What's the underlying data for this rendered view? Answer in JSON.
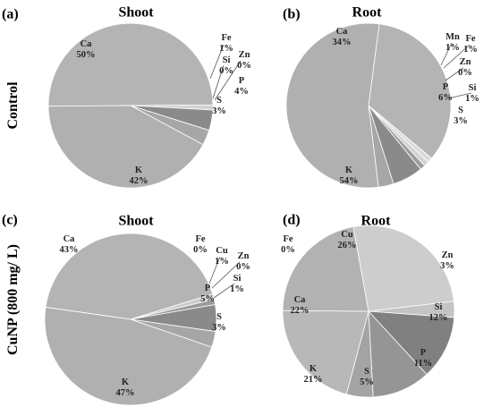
{
  "figure": {
    "row_labels": [
      "Control",
      "CuNP (800 mg/ L)"
    ]
  },
  "colors": {
    "Ca": "#b4b4b4",
    "K": "#b0b0b0",
    "S": "#a6a6a6",
    "P": "#8a8a8a",
    "Si": "#9c9c9c",
    "Zn": "#c4c4c4",
    "Fe": "#d2d2d2",
    "Mn": "#dadada",
    "Cu": "#cdcdcd",
    "Si_root_cunp": "#808080",
    "P_root_cunp": "#959595",
    "S_root_cunp": "#a4a4a4",
    "K_root_cunp": "#b8b8b8",
    "Ca_root_cunp": "#b2b2b2"
  },
  "chart_data": [
    {
      "panel": "(a)",
      "title": "Shoot",
      "type": "pie",
      "slices": [
        {
          "label": "Ca",
          "value": 50,
          "text": "50%"
        },
        {
          "label": "Fe",
          "value": 1,
          "text": "1%"
        },
        {
          "label": "Si",
          "value": 0,
          "text": "0%"
        },
        {
          "label": "Zn",
          "value": 0,
          "text": "0%"
        },
        {
          "label": "P",
          "value": 4,
          "text": "4%"
        },
        {
          "label": "S",
          "value": 3,
          "text": "3%"
        },
        {
          "label": "K",
          "value": 42,
          "text": "42%"
        }
      ]
    },
    {
      "panel": "(b)",
      "title": "Root",
      "type": "pie",
      "slices": [
        {
          "label": "Ca",
          "value": 34,
          "text": "34%"
        },
        {
          "label": "Mn",
          "value": 1,
          "text": "1%"
        },
        {
          "label": "Fe",
          "value": 1,
          "text": "1%"
        },
        {
          "label": "Zn",
          "value": 0,
          "text": "0%"
        },
        {
          "label": "Si",
          "value": 1,
          "text": "1%"
        },
        {
          "label": "P",
          "value": 6,
          "text": "6%"
        },
        {
          "label": "S",
          "value": 3,
          "text": "3%"
        },
        {
          "label": "K",
          "value": 54,
          "text": "54%"
        }
      ]
    },
    {
      "panel": "(c)",
      "title": "Shoot",
      "type": "pie",
      "slices": [
        {
          "label": "Ca",
          "value": 43,
          "text": "43%"
        },
        {
          "label": "Fe",
          "value": 0,
          "text": "0%"
        },
        {
          "label": "Cu",
          "value": 1,
          "text": "1%"
        },
        {
          "label": "Zn",
          "value": 0,
          "text": "0%"
        },
        {
          "label": "Si",
          "value": 1,
          "text": "1%"
        },
        {
          "label": "P",
          "value": 5,
          "text": "5%"
        },
        {
          "label": "S",
          "value": 3,
          "text": "3%"
        },
        {
          "label": "K",
          "value": 47,
          "text": "47%"
        }
      ]
    },
    {
      "panel": "(d)",
      "title": "Root",
      "type": "pie",
      "slices": [
        {
          "label": "Fe",
          "value": 0,
          "text": "0%"
        },
        {
          "label": "Cu",
          "value": 26,
          "text": "26%"
        },
        {
          "label": "Zn",
          "value": 3,
          "text": "3%"
        },
        {
          "label": "Si",
          "value": 12,
          "text": "12%"
        },
        {
          "label": "P",
          "value": 11,
          "text": "11%"
        },
        {
          "label": "S",
          "value": 5,
          "text": "5%"
        },
        {
          "label": "K",
          "value": 21,
          "text": "21%"
        },
        {
          "label": "Ca",
          "value": 22,
          "text": "22%"
        }
      ]
    }
  ]
}
